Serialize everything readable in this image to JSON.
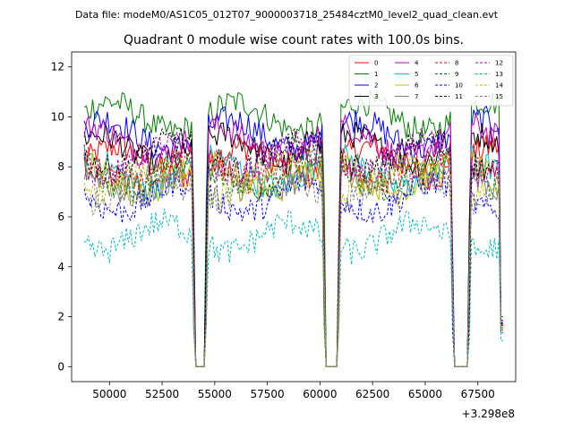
{
  "chart_data": {
    "type": "line",
    "suptitle": "Data file: modeM0/AS1C05_012T07_9000003718_25484cztM0_level2_quad_clean.evt",
    "title": "Quadrant 0 module wise count rates with 100.0s bins.",
    "xlabel": "",
    "ylabel": "",
    "x_offset_label": "+3.298e8",
    "xlim": [
      48200,
      69300
    ],
    "ylim": [
      -0.6,
      12.6
    ],
    "xticks": [
      50000,
      52500,
      55000,
      57500,
      60000,
      62500,
      65000,
      67500
    ],
    "xtick_labels": [
      "50000",
      "52500",
      "55000",
      "57500",
      "60000",
      "62500",
      "65000",
      "67500"
    ],
    "yticks": [
      0,
      2,
      4,
      6,
      8,
      10,
      12
    ],
    "ytick_labels": [
      "0",
      "2",
      "4",
      "6",
      "8",
      "10",
      "12"
    ],
    "bin_seconds": 100,
    "time_range": [
      48800,
      68700
    ],
    "gaps": [
      [
        54100,
        54500
      ],
      [
        60300,
        60800
      ],
      [
        66400,
        67000
      ]
    ],
    "series": [
      {
        "name": "0",
        "color": "#ff0000",
        "style": "solid",
        "base": 8.2
      },
      {
        "name": "1",
        "color": "#008000",
        "style": "solid",
        "base": 10.0
      },
      {
        "name": "2",
        "color": "#0000ff",
        "style": "solid",
        "base": 9.3
      },
      {
        "name": "3",
        "color": "#000000",
        "style": "solid",
        "base": 8.7
      },
      {
        "name": "4",
        "color": "#bf00bf",
        "style": "solid",
        "base": 9.0
      },
      {
        "name": "5",
        "color": "#00bfbf",
        "style": "solid",
        "base": 7.8
      },
      {
        "name": "6",
        "color": "#bfbf00",
        "style": "solid",
        "base": 7.6
      },
      {
        "name": "7",
        "color": "#808080",
        "style": "solid",
        "base": 7.4
      },
      {
        "name": "8",
        "color": "#ff0000",
        "style": "dashed",
        "base": 8.0
      },
      {
        "name": "9",
        "color": "#008000",
        "style": "dashed",
        "base": 7.7
      },
      {
        "name": "10",
        "color": "#0000ff",
        "style": "dashed",
        "base": 6.8
      },
      {
        "name": "11",
        "color": "#000000",
        "style": "dashed",
        "base": 8.5
      },
      {
        "name": "12",
        "color": "#bf00bf",
        "style": "dashed",
        "base": 8.3
      },
      {
        "name": "13",
        "color": "#00bfbf",
        "style": "dashed",
        "base": 5.2
      },
      {
        "name": "14",
        "color": "#bfbf00",
        "style": "dashed",
        "base": 7.5
      },
      {
        "name": "15",
        "color": "#808080",
        "style": "dashed",
        "base": 7.2
      }
    ],
    "legend": {
      "location": "upper-right",
      "columns": 4
    }
  }
}
